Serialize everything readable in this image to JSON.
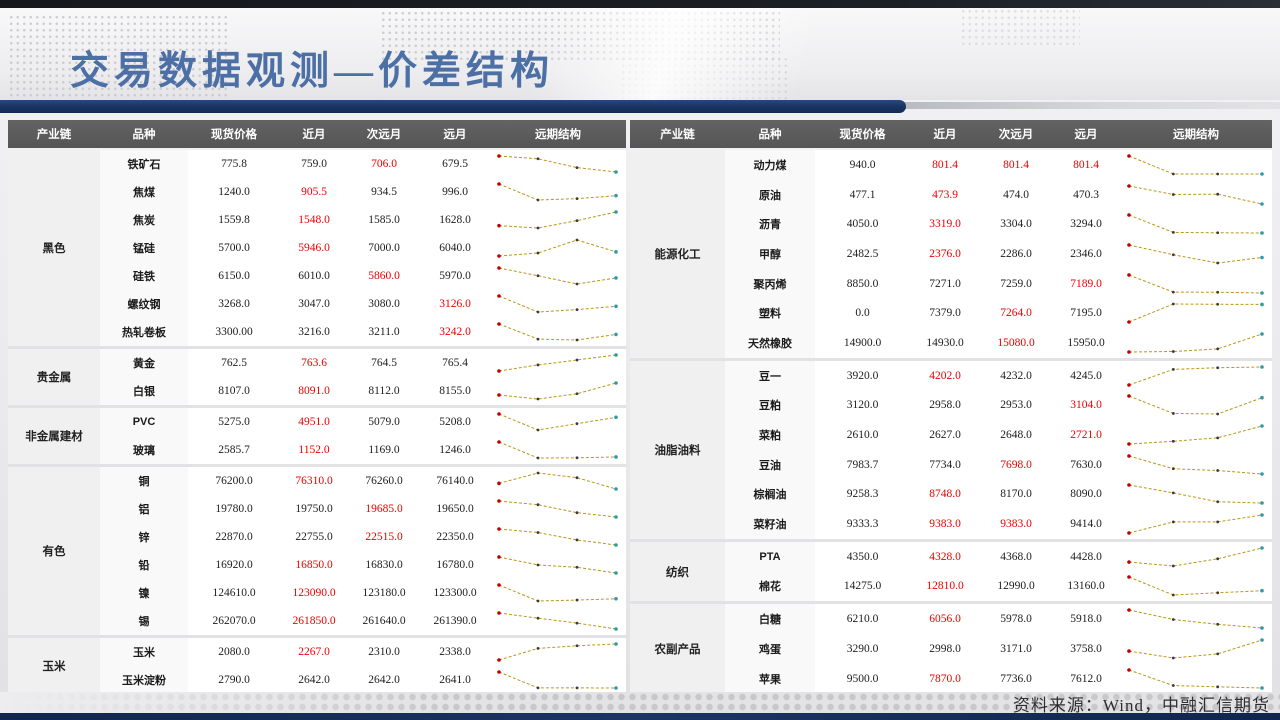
{
  "title": "交易数据观测—价差结构",
  "footer": "资料来源：Wind，中融汇信期货",
  "columns": [
    "产业链",
    "品种",
    "现货价格",
    "近月",
    "次远月",
    "远月",
    "远期结构"
  ],
  "colors": {
    "accent_navy": "#1B3564",
    "title_blue": "#4C6FA5",
    "header_gray": "#595959",
    "value_red": "#EE0000",
    "spark_line": "#BD9518",
    "spark_first": "#C00000",
    "spark_mid": "#3A3A3A",
    "spark_last": "#2E9AA6"
  },
  "tables": [
    {
      "side": "left",
      "spark_w": 128,
      "spark_h": 24,
      "groups": [
        {
          "name": "黑色",
          "rows": [
            {
              "variety": "铁矿石",
              "values": [
                "775.8",
                "759.0",
                "706.0",
                "679.5"
              ],
              "red": [
                2
              ]
            },
            {
              "variety": "焦煤",
              "values": [
                "1240.0",
                "905.5",
                "934.5",
                "996.0"
              ],
              "red": [
                1
              ]
            },
            {
              "variety": "焦炭",
              "values": [
                "1559.8",
                "1548.0",
                "1585.0",
                "1628.0"
              ],
              "red": [
                1
              ]
            },
            {
              "variety": "锰硅",
              "values": [
                "5700.0",
                "5946.0",
                "7000.0",
                "6040.0"
              ],
              "red": [
                1
              ]
            },
            {
              "variety": "硅铁",
              "values": [
                "6150.0",
                "6010.0",
                "5860.0",
                "5970.0"
              ],
              "red": [
                2
              ]
            },
            {
              "variety": "螺纹钢",
              "values": [
                "3268.0",
                "3047.0",
                "3080.0",
                "3126.0"
              ],
              "red": [
                3
              ]
            },
            {
              "variety": "热轧卷板",
              "values": [
                "3300.00",
                "3216.0",
                "3211.0",
                "3242.0"
              ],
              "red": [
                3
              ]
            }
          ]
        },
        {
          "name": "贵金属",
          "rows": [
            {
              "variety": "黄金",
              "values": [
                "762.5",
                "763.6",
                "764.5",
                "765.4"
              ],
              "red": [
                1
              ]
            },
            {
              "variety": "白银",
              "values": [
                "8107.0",
                "8091.0",
                "8112.0",
                "8155.0"
              ],
              "red": [
                1
              ]
            }
          ]
        },
        {
          "name": "非金属建材",
          "rows": [
            {
              "variety": "PVC",
              "values": [
                "5275.0",
                "4951.0",
                "5079.0",
                "5208.0"
              ],
              "red": [
                1
              ]
            },
            {
              "variety": "玻璃",
              "values": [
                "2585.7",
                "1152.0",
                "1169.0",
                "1246.0"
              ],
              "red": [
                1
              ]
            }
          ]
        },
        {
          "name": "有色",
          "rows": [
            {
              "variety": "铜",
              "values": [
                "76200.0",
                "76310.0",
                "76260.0",
                "76140.0"
              ],
              "red": [
                1
              ]
            },
            {
              "variety": "铝",
              "values": [
                "19780.0",
                "19750.0",
                "19685.0",
                "19650.0"
              ],
              "red": [
                2
              ]
            },
            {
              "variety": "锌",
              "values": [
                "22870.0",
                "22755.0",
                "22515.0",
                "22350.0"
              ],
              "red": [
                2
              ]
            },
            {
              "variety": "铅",
              "values": [
                "16920.0",
                "16850.0",
                "16830.0",
                "16780.0"
              ],
              "red": [
                1
              ]
            },
            {
              "variety": "镍",
              "values": [
                "124610.0",
                "123090.0",
                "123180.0",
                "123300.0"
              ],
              "red": [
                1
              ]
            },
            {
              "variety": "锡",
              "values": [
                "262070.0",
                "261850.0",
                "261640.0",
                "261390.0"
              ],
              "red": [
                1
              ]
            }
          ]
        },
        {
          "name": "玉米",
          "rows": [
            {
              "variety": "玉米",
              "values": [
                "2080.0",
                "2267.0",
                "2310.0",
                "2338.0"
              ],
              "red": [
                1
              ]
            },
            {
              "variety": "玉米淀粉",
              "values": [
                "2790.0",
                "2642.0",
                "2642.0",
                "2641.0"
              ],
              "red": []
            }
          ]
        }
      ]
    },
    {
      "side": "right",
      "spark_w": 144,
      "spark_h": 26,
      "groups": [
        {
          "name": "能源化工",
          "rows": [
            {
              "variety": "动力煤",
              "values": [
                "940.0",
                "801.4",
                "801.4",
                "801.4"
              ],
              "red": [
                1,
                2,
                3
              ]
            },
            {
              "variety": "原油",
              "values": [
                "477.1",
                "473.9",
                "474.0",
                "470.3"
              ],
              "red": [
                1
              ]
            },
            {
              "variety": "沥青",
              "values": [
                "4050.0",
                "3319.0",
                "3304.0",
                "3294.0"
              ],
              "red": [
                1
              ]
            },
            {
              "variety": "甲醇",
              "values": [
                "2482.5",
                "2376.0",
                "2286.0",
                "2346.0"
              ],
              "red": [
                1
              ]
            },
            {
              "variety": "聚丙烯",
              "values": [
                "8850.0",
                "7271.0",
                "7259.0",
                "7189.0"
              ],
              "red": [
                3
              ]
            },
            {
              "variety": "塑料",
              "values": [
                "0.0",
                "7379.0",
                "7264.0",
                "7195.0"
              ],
              "red": [
                2
              ]
            },
            {
              "variety": "天然橡胶",
              "values": [
                "14900.0",
                "14930.0",
                "15080.0",
                "15950.0"
              ],
              "red": [
                2
              ]
            }
          ]
        },
        {
          "name": "油脂油料",
          "rows": [
            {
              "variety": "豆一",
              "values": [
                "3920.0",
                "4202.0",
                "4232.0",
                "4245.0"
              ],
              "red": [
                1
              ]
            },
            {
              "variety": "豆粕",
              "values": [
                "3120.0",
                "2958.0",
                "2953.0",
                "3104.0"
              ],
              "red": [
                3
              ]
            },
            {
              "variety": "菜粕",
              "values": [
                "2610.0",
                "2627.0",
                "2648.0",
                "2721.0"
              ],
              "red": [
                3
              ]
            },
            {
              "variety": "豆油",
              "values": [
                "7983.7",
                "7734.0",
                "7698.0",
                "7630.0"
              ],
              "red": [
                2
              ]
            },
            {
              "variety": "棕榈油",
              "values": [
                "9258.3",
                "8748.0",
                "8170.0",
                "8090.0"
              ],
              "red": [
                1
              ]
            },
            {
              "variety": "菜籽油",
              "values": [
                "9333.3",
                "9383.0",
                "9383.0",
                "9414.0"
              ],
              "red": [
                1,
                2
              ]
            }
          ]
        },
        {
          "name": "纺织",
          "rows": [
            {
              "variety": "PTA",
              "values": [
                "4350.0",
                "4328.0",
                "4368.0",
                "4428.0"
              ],
              "red": [
                1
              ]
            },
            {
              "variety": "棉花",
              "values": [
                "14275.0",
                "12810.0",
                "12990.0",
                "13160.0"
              ],
              "red": [
                1
              ]
            }
          ]
        },
        {
          "name": "农副产品",
          "rows": [
            {
              "variety": "白糖",
              "values": [
                "6210.0",
                "6056.0",
                "5978.0",
                "5918.0"
              ],
              "red": [
                1
              ]
            },
            {
              "variety": "鸡蛋",
              "values": [
                "3290.0",
                "2998.0",
                "3171.0",
                "3758.0"
              ],
              "red": []
            },
            {
              "variety": "苹果",
              "values": [
                "9500.0",
                "7870.0",
                "7736.0",
                "7612.0"
              ],
              "red": [
                1
              ]
            }
          ]
        }
      ]
    }
  ]
}
